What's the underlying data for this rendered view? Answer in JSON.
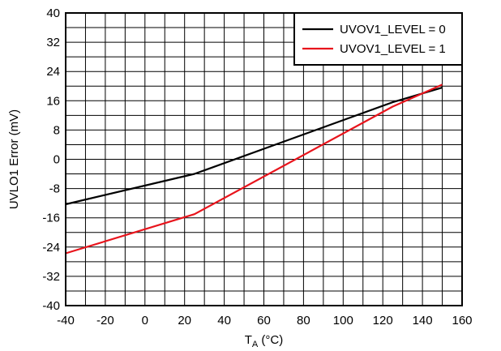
{
  "chart_data": {
    "type": "line",
    "xlabel_main": "T",
    "xlabel_sub": "A",
    "xlabel_unit": " (°C)",
    "ylabel": "UVLO1 Error (mV)",
    "xlim": [
      -40,
      160
    ],
    "ylim": [
      -40,
      40
    ],
    "x_ticks": [
      -40,
      -20,
      0,
      20,
      40,
      60,
      80,
      100,
      120,
      140,
      160
    ],
    "y_ticks": [
      40,
      32,
      24,
      16,
      8,
      0,
      -8,
      -16,
      -24,
      -32,
      -40
    ],
    "grid": true,
    "grid_x_step": 10,
    "grid_y_step": 4,
    "legend_position": "top-right",
    "series": [
      {
        "name": "UVOV1_LEVEL = 0",
        "color": "#000000",
        "points": [
          [
            -40,
            -12.3
          ],
          [
            25,
            -4
          ],
          [
            125,
            15.6
          ],
          [
            150,
            19.6
          ]
        ]
      },
      {
        "name": "UVOV1_LEVEL = 1",
        "color": "#e8141c",
        "points": [
          [
            -40,
            -25.7
          ],
          [
            25,
            -15
          ],
          [
            125,
            14.4
          ],
          [
            150,
            20.4
          ]
        ]
      }
    ]
  }
}
